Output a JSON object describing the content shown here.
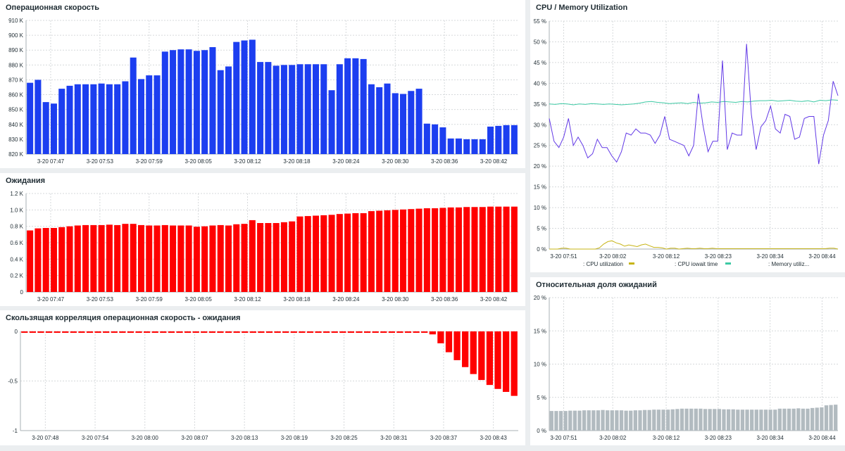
{
  "chart_data": [
    {
      "id": "op",
      "type": "bar",
      "title": "Операционная скорость",
      "color": "#1c3ef0",
      "ylim": [
        820000,
        910000
      ],
      "ytick_values": [
        820000,
        830000,
        840000,
        850000,
        860000,
        870000,
        880000,
        890000,
        900000,
        910000
      ],
      "ytick_labels": [
        "820 K",
        "830 K",
        "840 K",
        "850 K",
        "860 K",
        "870 K",
        "880 K",
        "890 K",
        "900 K",
        "910 K"
      ],
      "x_labels": [
        "3-20 07:47",
        "3-20 07:53",
        "3-20 07:59",
        "3-20 08:05",
        "3-20 08:12",
        "3-20 08:18",
        "3-20 08:24",
        "3-20 08:30",
        "3-20 08:36",
        "3-20 08:42"
      ],
      "values": [
        868000,
        870000,
        855000,
        854000,
        864000,
        866000,
        867000,
        867000,
        867000,
        867500,
        867000,
        867000,
        869000,
        885000,
        870500,
        873000,
        873000,
        889000,
        890000,
        890500,
        890500,
        889500,
        890000,
        892000,
        876500,
        879000,
        895500,
        896500,
        897000,
        882000,
        882000,
        879500,
        880000,
        880000,
        880500,
        880500,
        880500,
        880500,
        863000,
        880500,
        884500,
        884500,
        884000,
        867000,
        865000,
        867500,
        861000,
        860500,
        862500,
        864000,
        840500,
        840000,
        838000,
        830500,
        830500,
        830000,
        830000,
        830000,
        838500,
        839000,
        839500,
        839500
      ]
    },
    {
      "id": "wait",
      "type": "bar",
      "title": "Ожидания",
      "color": "#ff0000",
      "ylim": [
        0,
        1200
      ],
      "ytick_values": [
        0,
        200,
        400,
        600,
        800,
        1000,
        1200
      ],
      "ytick_labels": [
        "0",
        "0.2 K",
        "0.4 K",
        "0.6 K",
        "0.8 K",
        "1.0 K",
        "1.2 K"
      ],
      "x_labels": [
        "3-20 07:47",
        "3-20 07:53",
        "3-20 07:59",
        "3-20 08:05",
        "3-20 08:12",
        "3-20 08:18",
        "3-20 08:24",
        "3-20 08:30",
        "3-20 08:36",
        "3-20 08:42"
      ],
      "values": [
        750,
        775,
        780,
        780,
        790,
        800,
        810,
        815,
        815,
        815,
        820,
        815,
        830,
        830,
        815,
        810,
        810,
        815,
        810,
        810,
        810,
        795,
        800,
        810,
        815,
        810,
        825,
        830,
        875,
        840,
        840,
        840,
        850,
        860,
        920,
        925,
        930,
        935,
        940,
        950,
        955,
        960,
        960,
        985,
        990,
        995,
        1000,
        1005,
        1010,
        1015,
        1020,
        1020,
        1025,
        1030,
        1030,
        1035,
        1035,
        1035,
        1040,
        1040,
        1040,
        1040
      ]
    },
    {
      "id": "corr",
      "type": "bar",
      "title": "Скользящая корреляция операционная скорость - ожидания",
      "color": "#ff0000",
      "ylim": [
        -1,
        0
      ],
      "ytick_values": [
        0,
        -0.5,
        -1
      ],
      "ytick_labels": [
        "0",
        "-0.5",
        "-1"
      ],
      "x_labels": [
        "3-20 07:48",
        "3-20 07:54",
        "3-20 08:00",
        "3-20 08:07",
        "3-20 08:13",
        "3-20 08:19",
        "3-20 08:25",
        "3-20 08:31",
        "3-20 08:37",
        "3-20 08:43"
      ],
      "values": [
        -0.01,
        -0.01,
        -0.01,
        -0.01,
        -0.01,
        -0.01,
        -0.01,
        -0.01,
        -0.01,
        -0.01,
        -0.01,
        -0.01,
        -0.01,
        -0.01,
        -0.01,
        -0.01,
        -0.01,
        -0.01,
        -0.01,
        -0.01,
        -0.01,
        -0.01,
        -0.01,
        -0.01,
        -0.01,
        -0.01,
        -0.01,
        -0.01,
        -0.01,
        -0.01,
        -0.01,
        -0.01,
        -0.01,
        -0.01,
        -0.01,
        -0.01,
        -0.01,
        -0.01,
        -0.01,
        -0.01,
        -0.01,
        -0.01,
        -0.01,
        -0.01,
        -0.01,
        -0.01,
        -0.01,
        -0.01,
        -0.01,
        -0.01,
        -0.03,
        -0.12,
        -0.21,
        -0.29,
        -0.36,
        -0.43,
        -0.49,
        -0.54,
        -0.58,
        -0.61,
        -0.65
      ]
    },
    {
      "id": "cpu",
      "type": "line",
      "title": "CPU / Memory Utilization",
      "ylim": [
        0,
        55
      ],
      "ytick_values": [
        0,
        5,
        10,
        15,
        20,
        25,
        30,
        35,
        40,
        45,
        50,
        55
      ],
      "ytick_labels": [
        "0 %",
        "5 %",
        "10 %",
        "15 %",
        "20 %",
        "25 %",
        "30 %",
        "35 %",
        "40 %",
        "45 %",
        "50 %",
        "55 %"
      ],
      "x_labels": [
        "3-20 07:51",
        "3-20 08:02",
        "3-20 08:12",
        "3-20 08:23",
        "3-20 08:34",
        "3-20 08:44"
      ],
      "x_label_positions": [
        0.05,
        0.22,
        0.405,
        0.585,
        0.765,
        0.945
      ],
      "legend": [
        ": CPU utilization",
        ": CPU iowait time",
        ": Memory utiliz..."
      ],
      "series": [
        {
          "name": "CPU utilization",
          "color": "#c7b416",
          "values": [
            0,
            0,
            0,
            0.2,
            0.2,
            0,
            0,
            0,
            0,
            0,
            0,
            0,
            0.3,
            1.2,
            1.8,
            2,
            1.5,
            1.2,
            0.7,
            1,
            0.8,
            0.6,
            1,
            1.2,
            0.8,
            0.4,
            0.4,
            0.3,
            0,
            0.2,
            0.2,
            0,
            0.1,
            0.2,
            0.1,
            0.1,
            0.2,
            0.1,
            0.1,
            0.2,
            0.1,
            0.1,
            0.1,
            0.1,
            0.1,
            0.1,
            0.1,
            0.1,
            0.1,
            0.1,
            0.1,
            0.1,
            0.1,
            0.1,
            0.1,
            0.1,
            0.1,
            0.1,
            0.1,
            0.1,
            0.1,
            0.1,
            0.1,
            0.1,
            0.1,
            0.1,
            0.1,
            0.2,
            0.2,
            0
          ]
        },
        {
          "name": "CPU iowait time",
          "color": "#3dc9a4",
          "values": [
            35,
            34.9,
            35.1,
            35,
            34.8,
            35,
            34.9,
            35.1,
            35,
            34.9,
            35,
            34.9,
            34.8,
            34.9,
            35,
            35.2,
            35.5,
            35.6,
            35.4,
            35.3,
            35.1,
            35.2,
            35.3,
            35.1,
            35.4,
            35.2,
            35.3,
            35.5,
            35.4,
            35.6,
            35.5,
            35.4,
            35.6,
            35.5,
            35.7,
            35.8,
            35.8,
            35.9,
            35.7,
            35.8,
            35.9,
            35.7,
            35.6,
            35.8,
            35.5,
            35.9,
            35.8,
            36,
            35.9
          ]
        },
        {
          "name": "Memory utilization",
          "color": "#6239e6",
          "values": [
            31.5,
            26,
            24.5,
            27,
            31.5,
            25,
            27,
            25,
            22,
            23,
            26.5,
            24.5,
            24.5,
            22.5,
            21,
            23.5,
            28,
            27.5,
            29,
            28,
            28,
            27.5,
            25.5,
            27.5,
            32,
            26.5,
            26,
            25.5,
            25,
            22.5,
            25,
            37.5,
            29.5,
            23.5,
            26,
            26,
            45.5,
            24,
            28,
            27.5,
            27.5,
            49.5,
            32.5,
            24,
            29.5,
            31,
            34.5,
            29,
            28,
            32.5,
            32,
            26.5,
            27,
            31.5,
            32,
            32,
            20.5,
            27.5,
            31,
            40.5,
            37
          ]
        }
      ]
    },
    {
      "id": "rel",
      "type": "bar",
      "title": "Относительная доля ожиданий",
      "color": "#b2bbc0",
      "ylim": [
        0,
        20
      ],
      "ytick_values": [
        0,
        5,
        10,
        15,
        20
      ],
      "ytick_labels": [
        "0 %",
        "5 %",
        "10 %",
        "15 %",
        "20 %"
      ],
      "x_labels": [
        "3-20 07:51",
        "3-20 08:02",
        "3-20 08:12",
        "3-20 08:23",
        "3-20 08:34",
        "3-20 08:44"
      ],
      "x_label_positions": [
        0.05,
        0.22,
        0.405,
        0.585,
        0.765,
        0.945
      ],
      "values": [
        2.95,
        2.95,
        2.95,
        2.95,
        3,
        3,
        3,
        3.05,
        3.05,
        3.05,
        3.05,
        3.1,
        3.05,
        3.05,
        3.05,
        3.05,
        3,
        3,
        3.05,
        3.05,
        3.1,
        3.1,
        3.15,
        3.15,
        3.15,
        3.15,
        3.2,
        3.25,
        3.3,
        3.3,
        3.3,
        3.3,
        3.3,
        3.25,
        3.25,
        3.25,
        3.25,
        3.2,
        3.2,
        3.2,
        3.15,
        3.15,
        3.15,
        3.15,
        3.15,
        3.15,
        3.15,
        3.15,
        3.15,
        3.3,
        3.3,
        3.3,
        3.3,
        3.35,
        3.3,
        3.3,
        3.4,
        3.45,
        3.5,
        3.8,
        3.85,
        3.9
      ]
    }
  ]
}
